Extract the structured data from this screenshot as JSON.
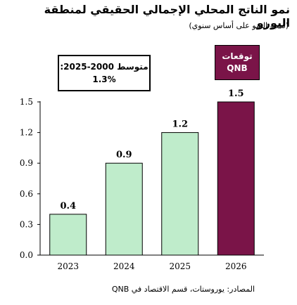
{
  "header": {
    "title": "نمو الناتج المحلي الإجمالي الحقيقي لمنطقة اليورو",
    "subtitle": "(نسبة النمو على أساس سنوي)"
  },
  "average_box": {
    "line1": "متوسط 2000-2025:",
    "line2": "1.3%"
  },
  "forecast_box": {
    "line1": "توقعات",
    "line2": "QNB",
    "fill_color": "#7a1448"
  },
  "source": "المصادر: يوروستات، قسم الاقتصاد في QNB",
  "chart_data": {
    "type": "bar",
    "categories": [
      "2023",
      "2024",
      "2025",
      "2026"
    ],
    "values": [
      0.4,
      0.9,
      1.2,
      1.5
    ],
    "value_labels": [
      "0.4",
      "0.9",
      "1.2",
      "1.5"
    ],
    "ylim": [
      0,
      1.5
    ],
    "yticks": [
      "0.0",
      "0.3",
      "0.6",
      "0.9",
      "1.2",
      "1.5"
    ],
    "grid": false,
    "bar_colors": [
      "#bfeccb",
      "#bfeccb",
      "#bfeccb",
      "#7a1448"
    ]
  }
}
